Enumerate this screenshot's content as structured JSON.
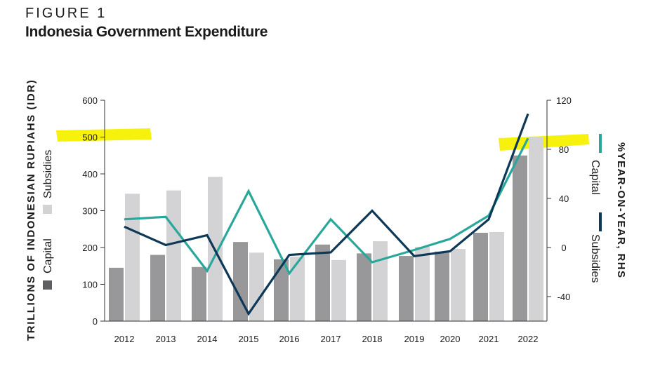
{
  "figure_label": "FIGURE 1",
  "title": "Indonesia Government Expenditure",
  "colors": {
    "capital_bar": "#98989a",
    "subsidies_bar": "#d3d3d5",
    "capital_line": "#2aa79b",
    "subsidies_line": "#0e3857",
    "legend_capital_swatch": "#5f5f61",
    "highlight": "#f6f000"
  },
  "chart_data": {
    "type": "bar+line",
    "title": "Indonesia Government Expenditure",
    "ylabel_left": "TRILLIONS OF INDONESIAN RUPIAHS (IDR)",
    "ylabel_right": "%YEAR-ON-YEAR, RHS",
    "categories": [
      "2012",
      "2013",
      "2014",
      "2015",
      "2016",
      "2017",
      "2018",
      "2019",
      "2020",
      "2021",
      "2022"
    ],
    "ylim_left": [
      0,
      600
    ],
    "yticks_left": [
      0,
      100,
      200,
      300,
      400,
      500,
      600
    ],
    "ylim_right": [
      -60,
      120
    ],
    "yticks_right": [
      -40,
      0,
      40,
      80,
      120
    ],
    "bar_series": [
      {
        "name": "Capital",
        "values": [
          145,
          180,
          147,
          215,
          168,
          208,
          184,
          177,
          189,
          240,
          450
        ]
      },
      {
        "name": "Subsidies",
        "values": [
          346,
          355,
          392,
          186,
          175,
          166,
          217,
          202,
          196,
          242,
          500
        ]
      }
    ],
    "line_series": [
      {
        "name": "Capital",
        "values": [
          23,
          25,
          -19,
          46,
          -21,
          23,
          -12,
          -2,
          7,
          26,
          89
        ]
      },
      {
        "name": "Subsidies",
        "values": [
          17,
          2,
          10,
          -54,
          -6,
          -4,
          30,
          -7,
          -3,
          23,
          109
        ]
      }
    ],
    "legend_left": [
      "Capital",
      "Subsidies"
    ],
    "legend_right": [
      "Capital",
      "Subsidies"
    ]
  }
}
